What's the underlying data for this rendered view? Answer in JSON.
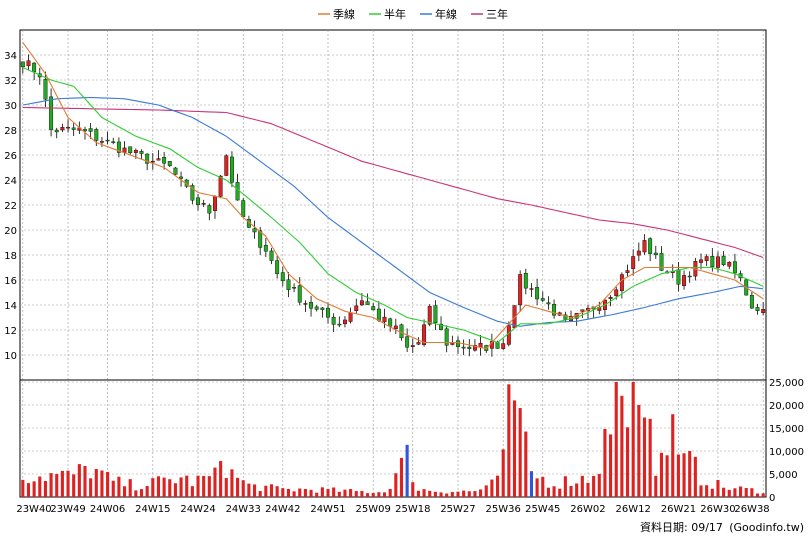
{
  "chart_data": [
    {
      "type": "candlestick",
      "legend_position": "top-center",
      "grid": true,
      "ylim": [
        8,
        36
      ],
      "y_ticks": [
        10,
        12,
        14,
        16,
        18,
        20,
        22,
        24,
        26,
        28,
        30,
        32,
        34
      ],
      "x_tick_labels": [
        "23W40",
        "23W49",
        "24W06",
        "24W15",
        "24W24",
        "24W33",
        "24W42",
        "24W51",
        "25W09",
        "25W18",
        "25W27",
        "25W36",
        "25W45",
        "26W02",
        "26W12",
        "26W21",
        "26W30",
        "26W38"
      ],
      "legend": [
        {
          "name": "季線",
          "color": "#e07b39"
        },
        {
          "name": "半年",
          "color": "#33cc33"
        },
        {
          "name": "年線",
          "color": "#3a7bd5"
        },
        {
          "name": "三年",
          "color": "#cc3377"
        }
      ],
      "candle_colors": {
        "up": "#dd2222",
        "down": "#22aa22"
      },
      "close_waypoints": [
        [
          0,
          33.5
        ],
        [
          3,
          32.5
        ],
        [
          5,
          28
        ],
        [
          10,
          28
        ],
        [
          15,
          27
        ],
        [
          20,
          26
        ],
        [
          26,
          25
        ],
        [
          30,
          22.5
        ],
        [
          33,
          21.5
        ],
        [
          36,
          26
        ],
        [
          38,
          22
        ],
        [
          40,
          20
        ],
        [
          43,
          18.5
        ],
        [
          45,
          16.5
        ],
        [
          48,
          15
        ],
        [
          52,
          13.5
        ],
        [
          56,
          12.5
        ],
        [
          60,
          14.5
        ],
        [
          63,
          13
        ],
        [
          66,
          12
        ],
        [
          68,
          10.5
        ],
        [
          70,
          11
        ],
        [
          72,
          13.5
        ],
        [
          75,
          11
        ],
        [
          80,
          10.5
        ],
        [
          85,
          11
        ],
        [
          88,
          16
        ],
        [
          93,
          14
        ],
        [
          96,
          12.5
        ],
        [
          100,
          13.5
        ],
        [
          104,
          15
        ],
        [
          107,
          17
        ],
        [
          110,
          19
        ],
        [
          113,
          17
        ],
        [
          116,
          16
        ],
        [
          120,
          17.5
        ],
        [
          124,
          17.5
        ],
        [
          127,
          16
        ],
        [
          129,
          14
        ],
        [
          131,
          13.6
        ]
      ],
      "ma_quarter_waypoints": [
        [
          0,
          35
        ],
        [
          4,
          32.5
        ],
        [
          8,
          29
        ],
        [
          13,
          27
        ],
        [
          19,
          26
        ],
        [
          25,
          25
        ],
        [
          31,
          23
        ],
        [
          36,
          22.5
        ],
        [
          39,
          21
        ],
        [
          43,
          19.5
        ],
        [
          47,
          16.5
        ],
        [
          52,
          14.5
        ],
        [
          57,
          13.5
        ],
        [
          62,
          13
        ],
        [
          66,
          12
        ],
        [
          71,
          11
        ],
        [
          77,
          11
        ],
        [
          82,
          10.5
        ],
        [
          85,
          12
        ],
        [
          89,
          14
        ],
        [
          93,
          13.5
        ],
        [
          97,
          13
        ],
        [
          102,
          14
        ],
        [
          106,
          16
        ],
        [
          110,
          17
        ],
        [
          114,
          17
        ],
        [
          118,
          17
        ],
        [
          122,
          16.5
        ],
        [
          126,
          16
        ],
        [
          131,
          14.5
        ]
      ],
      "ma_halfyear_waypoints": [
        [
          0,
          33
        ],
        [
          5,
          32
        ],
        [
          9,
          31.5
        ],
        [
          14,
          29
        ],
        [
          20,
          27.5
        ],
        [
          26,
          26.5
        ],
        [
          31,
          25
        ],
        [
          36,
          24
        ],
        [
          40,
          22.5
        ],
        [
          44,
          21
        ],
        [
          49,
          19
        ],
        [
          54,
          16.5
        ],
        [
          59,
          15
        ],
        [
          64,
          14
        ],
        [
          68,
          13
        ],
        [
          73,
          12.5
        ],
        [
          78,
          12
        ],
        [
          84,
          11
        ],
        [
          88,
          12.5
        ],
        [
          93,
          12.5
        ],
        [
          98,
          13
        ],
        [
          103,
          14
        ],
        [
          108,
          15.5
        ],
        [
          113,
          16.5
        ],
        [
          118,
          17
        ],
        [
          122,
          17
        ],
        [
          126,
          16.5
        ],
        [
          131,
          15.5
        ]
      ],
      "ma_year_waypoints": [
        [
          0,
          30
        ],
        [
          6,
          30.5
        ],
        [
          12,
          30.6
        ],
        [
          18,
          30.5
        ],
        [
          24,
          30
        ],
        [
          30,
          29
        ],
        [
          36,
          27.5
        ],
        [
          42,
          25.5
        ],
        [
          48,
          23.5
        ],
        [
          54,
          21
        ],
        [
          60,
          19
        ],
        [
          66,
          17
        ],
        [
          72,
          15
        ],
        [
          78,
          13.8
        ],
        [
          84,
          12.7
        ],
        [
          88,
          12.3
        ],
        [
          93,
          12.6
        ],
        [
          98,
          12.7
        ],
        [
          104,
          13.2
        ],
        [
          110,
          13.8
        ],
        [
          116,
          14.5
        ],
        [
          122,
          15
        ],
        [
          127,
          15.5
        ],
        [
          131,
          15.3
        ]
      ],
      "ma_3year_waypoints": [
        [
          0,
          29.8
        ],
        [
          12,
          29.7
        ],
        [
          24,
          29.6
        ],
        [
          36,
          29.4
        ],
        [
          44,
          28.5
        ],
        [
          52,
          27
        ],
        [
          60,
          25.5
        ],
        [
          68,
          24.5
        ],
        [
          76,
          23.5
        ],
        [
          84,
          22.5
        ],
        [
          90,
          22
        ],
        [
          96,
          21.4
        ],
        [
          102,
          20.8
        ],
        [
          108,
          20.5
        ],
        [
          114,
          20
        ],
        [
          120,
          19.3
        ],
        [
          126,
          18.6
        ],
        [
          131,
          17.8
        ]
      ]
    },
    {
      "type": "bar",
      "ylim": [
        0,
        25000
      ],
      "y_tick_labels": [
        "0",
        "5,000",
        "10,000",
        "15,000",
        "20,000",
        "25,000"
      ],
      "up_color": "#dd2222",
      "down_color": "#3355dd",
      "volume_waypoints": [
        [
          0,
          5500
        ],
        [
          4,
          5800
        ],
        [
          8,
          5500
        ],
        [
          12,
          7500
        ],
        [
          16,
          4000
        ],
        [
          20,
          3000
        ],
        [
          24,
          4000
        ],
        [
          28,
          5000
        ],
        [
          30,
          4000
        ],
        [
          34,
          5500
        ],
        [
          35,
          11500
        ],
        [
          37,
          6000
        ],
        [
          40,
          3000
        ],
        [
          46,
          2000
        ],
        [
          52,
          2000
        ],
        [
          58,
          1500
        ],
        [
          64,
          1300
        ],
        [
          68,
          10500
        ],
        [
          70,
          2000
        ],
        [
          74,
          1500
        ],
        [
          80,
          1500
        ],
        [
          84,
          4000
        ],
        [
          86,
          22000
        ],
        [
          88,
          18000
        ],
        [
          90,
          6000
        ],
        [
          94,
          3500
        ],
        [
          97,
          4500
        ],
        [
          100,
          5000
        ],
        [
          102,
          9000
        ],
        [
          104,
          20000
        ],
        [
          106,
          21000
        ],
        [
          108,
          12000
        ],
        [
          110,
          17000
        ],
        [
          112,
          10000
        ],
        [
          114,
          8000
        ],
        [
          116,
          9000
        ],
        [
          118,
          10000
        ],
        [
          120,
          5000
        ],
        [
          124,
          2500
        ],
        [
          128,
          2000
        ],
        [
          131,
          1500
        ]
      ],
      "blue_bar_indices": [
        68,
        90
      ],
      "spike_overrides": [
        [
          86,
          24500
        ],
        [
          87,
          21000
        ],
        [
          105,
          26000
        ],
        [
          106,
          22000
        ],
        [
          108,
          26000
        ],
        [
          109,
          20000
        ],
        [
          111,
          17000
        ],
        [
          115,
          18000
        ],
        [
          117,
          9500
        ],
        [
          118,
          10000
        ]
      ]
    }
  ],
  "footer": {
    "date_label": "資料日期: 09/17",
    "source": "(Goodinfo.tw)"
  }
}
